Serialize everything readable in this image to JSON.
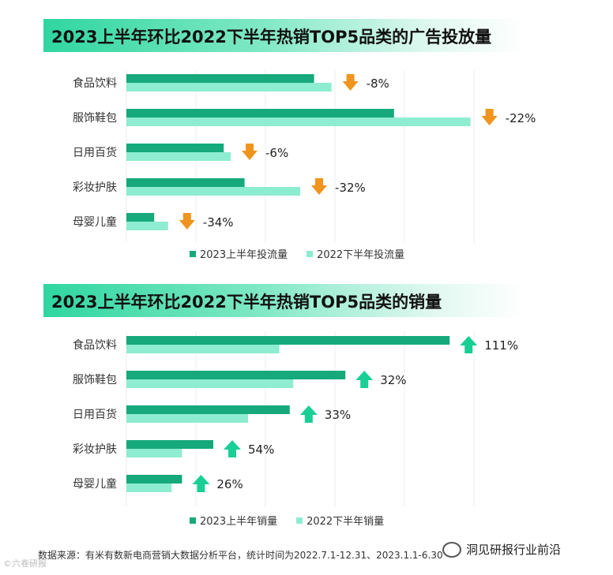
{
  "colors": {
    "series2023": "#16a97b",
    "series2022": "#8eecd0",
    "down": "#f0941e",
    "up": "#19cf95",
    "grid": "#eeeeee"
  },
  "chart_data": [
    {
      "type": "bar",
      "title": "2023上半年环比2022下半年热销TOP5品类的广告投放量",
      "categories": [
        "食品饮料",
        "服饰鞋包",
        "日用百货",
        "彩妆护肤",
        "母婴儿童"
      ],
      "series": [
        {
          "name": "2023上半年投流量",
          "values": [
            54,
            77,
            28,
            34,
            8
          ]
        },
        {
          "name": "2022下半年投流量",
          "values": [
            59,
            99,
            30,
            50,
            12
          ]
        }
      ],
      "changes": [
        "-8%",
        "-22%",
        "-6%",
        "-32%",
        "-34%"
      ],
      "change_direction": "down",
      "xlim": [
        0,
        100
      ],
      "grid": true
    },
    {
      "type": "bar",
      "title": "2023上半年环比2022下半年热销TOP5品类的销量",
      "categories": [
        "食品饮料",
        "服饰鞋包",
        "日用百货",
        "彩妆护肤",
        "母婴儿童"
      ],
      "series": [
        {
          "name": "2023上半年销量",
          "values": [
            93,
            63,
            47,
            25,
            16
          ]
        },
        {
          "name": "2022下半年销量",
          "values": [
            44,
            48,
            35,
            16,
            13
          ]
        }
      ],
      "changes": [
        "111%",
        "32%",
        "33%",
        "54%",
        "26%"
      ],
      "change_direction": "up",
      "xlim": [
        0,
        100
      ],
      "grid": true
    }
  ],
  "footer": "数据来源：有米有数新电商营销大数据分析平台，统计时间为2022.7.1-12.31、2023.1.1-6.30",
  "watermark": "洞见研报行业前沿",
  "corner_mark": "©六卷研报"
}
